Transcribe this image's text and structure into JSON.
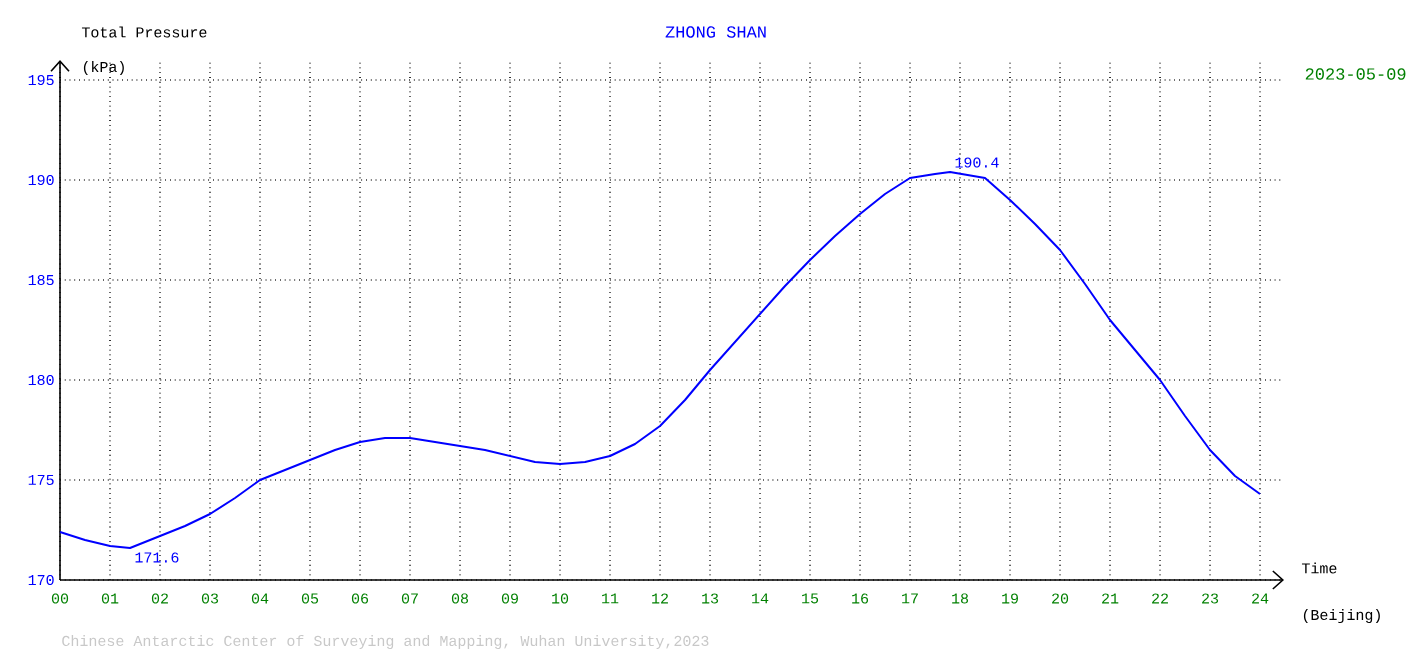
{
  "chart_data": {
    "type": "line",
    "title": "ZHONG SHAN",
    "subtitle": "2023-05-09",
    "ylabel": "Total Pressure",
    "xlabel": "Time",
    "annotations": [
      "(kPa)",
      "(Beijing)",
      {
        "text": "171.6",
        "x": 1.4,
        "y": 171.6
      },
      {
        "text": "190.4",
        "x": 17.8,
        "y": 190.4
      },
      "Chinese Antarctic Center of Surveying and Mapping, Wuhan University,2023"
    ],
    "x": [
      0,
      0.5,
      1,
      1.4,
      2,
      2.5,
      3,
      3.5,
      4,
      4.5,
      5,
      5.5,
      6,
      6.5,
      7,
      7.5,
      8,
      8.5,
      9,
      9.5,
      10,
      10.5,
      11,
      11.5,
      12,
      12.5,
      13,
      13.5,
      14,
      14.5,
      15,
      15.5,
      16,
      16.5,
      17,
      17.5,
      17.8,
      18.5,
      19,
      19.5,
      20,
      20.5,
      21,
      21.5,
      22,
      22.5,
      23,
      23.5,
      24
    ],
    "series": [
      {
        "color": "#0000ff",
        "values": [
          172.4,
          172.0,
          171.7,
          171.6,
          172.2,
          172.7,
          173.3,
          174.1,
          175.0,
          175.5,
          176.0,
          176.5,
          176.9,
          177.1,
          177.1,
          176.9,
          176.7,
          176.5,
          176.2,
          175.9,
          175.8,
          175.9,
          176.2,
          176.8,
          177.7,
          179.0,
          180.5,
          181.9,
          183.3,
          184.7,
          186.0,
          187.2,
          188.3,
          189.3,
          190.1,
          190.3,
          190.4,
          190.1,
          189.0,
          187.8,
          186.5,
          184.8,
          183.0,
          181.5,
          180.0,
          178.2,
          176.5,
          175.2,
          174.3
        ]
      }
    ],
    "xlim": [
      0,
      24
    ],
    "ylim": [
      170,
      195
    ],
    "xticks": [
      {
        "value": 0,
        "label": "00"
      },
      {
        "value": 1,
        "label": "01"
      },
      {
        "value": 2,
        "label": "02"
      },
      {
        "value": 3,
        "label": "03"
      },
      {
        "value": 4,
        "label": "04"
      },
      {
        "value": 5,
        "label": "05"
      },
      {
        "value": 6,
        "label": "06"
      },
      {
        "value": 7,
        "label": "07"
      },
      {
        "value": 8,
        "label": "08"
      },
      {
        "value": 9,
        "label": "09"
      },
      10,
      11,
      12,
      13,
      14,
      15,
      16,
      17,
      18,
      19,
      20,
      21,
      22,
      23,
      24
    ],
    "yticks": [
      170,
      175,
      180,
      185,
      190,
      195
    ],
    "grid": true
  }
}
